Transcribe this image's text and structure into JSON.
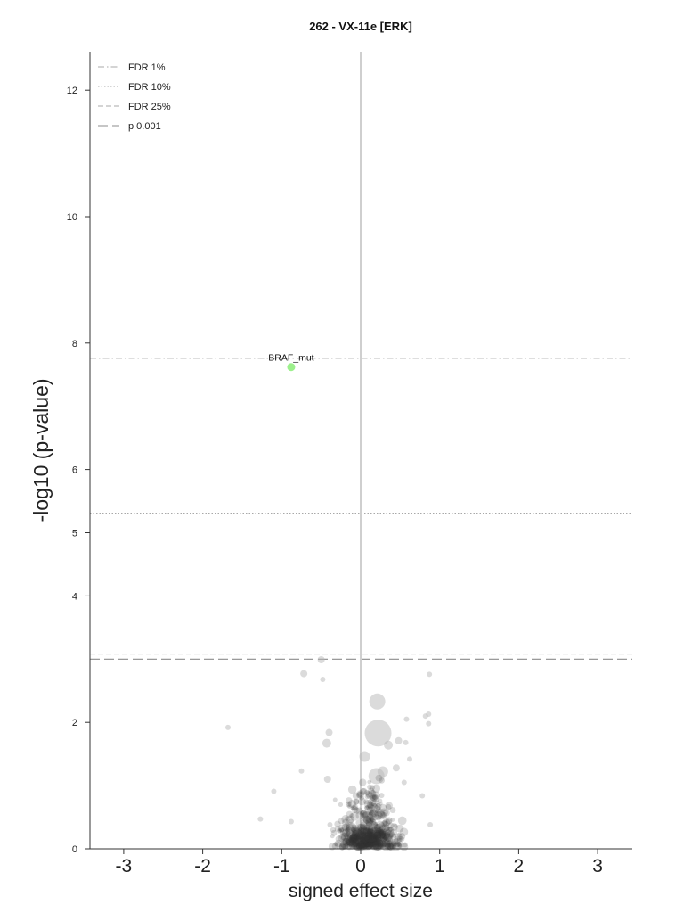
{
  "chart_data": {
    "type": "scatter",
    "title": "262 - VX-11e [ERK]",
    "xlabel": "signed effect size",
    "ylabel": "-log10 (p-value)",
    "xlim": [
      -3.4,
      3.4
    ],
    "ylim": [
      0,
      12.6
    ],
    "x_ticks": [
      -3,
      -2,
      -1,
      0,
      1,
      2,
      3
    ],
    "y_ticks": [
      0,
      2,
      4,
      5,
      6,
      8,
      10,
      12
    ],
    "grid": false,
    "legend_position": "top-left",
    "thresholds": [
      {
        "name": "FDR 1%",
        "y": 7.76,
        "style": "dashdot",
        "color": "#a8a8a8"
      },
      {
        "name": "FDR 10%",
        "y": 5.31,
        "style": "dotted",
        "color": "#a8a8a8"
      },
      {
        "name": "FDR 25%",
        "y": 3.08,
        "style": "dashed",
        "color": "#a8a8a8"
      },
      {
        "name": "p 0.001",
        "y": 3.0,
        "style": "longdash",
        "color": "#8c8c8c"
      }
    ],
    "highlight": {
      "label": "BRAF_mut",
      "x": -0.88,
      "y": 7.62,
      "color": "#9cf08c"
    },
    "light_points": [
      {
        "x": 0.22,
        "y": 1.83,
        "r": 15
      },
      {
        "x": 0.21,
        "y": 2.33,
        "r": 9
      },
      {
        "x": -0.5,
        "y": 2.99,
        "r": 4
      },
      {
        "x": -0.72,
        "y": 2.77,
        "r": 4
      },
      {
        "x": -0.48,
        "y": 2.68,
        "r": 3
      },
      {
        "x": 0.87,
        "y": 2.76,
        "r": 3
      },
      {
        "x": 0.58,
        "y": 2.05,
        "r": 3
      },
      {
        "x": 0.86,
        "y": 2.13,
        "r": 3
      },
      {
        "x": 0.82,
        "y": 2.1,
        "r": 3
      },
      {
        "x": 0.86,
        "y": 1.98,
        "r": 3
      },
      {
        "x": -1.68,
        "y": 1.92,
        "r": 3
      },
      {
        "x": -0.4,
        "y": 1.84,
        "r": 4
      },
      {
        "x": -0.43,
        "y": 1.67,
        "r": 5
      },
      {
        "x": 0.48,
        "y": 1.71,
        "r": 4
      },
      {
        "x": 0.57,
        "y": 1.68,
        "r": 3
      },
      {
        "x": 0.35,
        "y": 1.64,
        "r": 5
      },
      {
        "x": 0.05,
        "y": 1.46,
        "r": 6
      },
      {
        "x": 0.62,
        "y": 1.42,
        "r": 3
      },
      {
        "x": 0.2,
        "y": 1.15,
        "r": 9
      },
      {
        "x": 0.28,
        "y": 1.22,
        "r": 6
      },
      {
        "x": 0.45,
        "y": 1.28,
        "r": 4
      },
      {
        "x": -0.75,
        "y": 1.23,
        "r": 3
      },
      {
        "x": -0.42,
        "y": 1.1,
        "r": 4
      },
      {
        "x": 0.55,
        "y": 1.05,
        "r": 3
      },
      {
        "x": -1.1,
        "y": 0.91,
        "r": 3
      },
      {
        "x": 0.78,
        "y": 0.84,
        "r": 3
      },
      {
        "x": -1.27,
        "y": 0.47,
        "r": 3
      },
      {
        "x": -0.88,
        "y": 0.43,
        "r": 3
      },
      {
        "x": 0.88,
        "y": 0.38,
        "r": 3
      }
    ],
    "dark_cluster": {
      "center_x": 0.1,
      "center_y": 0.25,
      "spread_x": 0.28,
      "spread_y": 0.3,
      "count": 650
    }
  }
}
